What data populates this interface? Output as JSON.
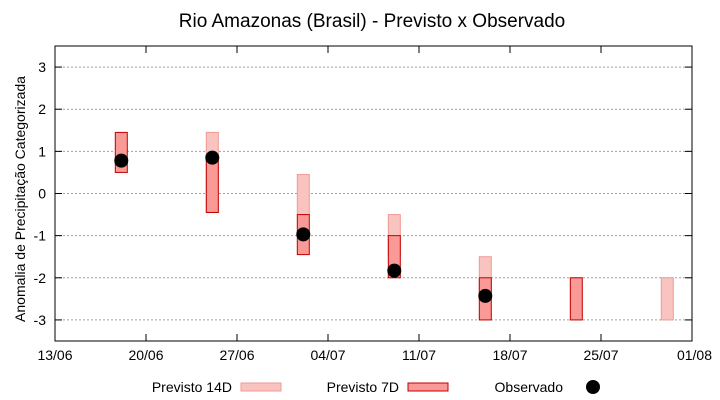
{
  "chart_data": {
    "type": "range-bar-with-points",
    "title": "Rio Amazonas (Brasil) - Previsto x Observado",
    "xlabel": "",
    "ylabel": "Anomalia de Precipitação Categorizada",
    "ylim": [
      -3.5,
      3.5
    ],
    "yticks": [
      3,
      2,
      1,
      0,
      -1,
      -2,
      -3
    ],
    "xlim_days": [
      0,
      49
    ],
    "xticks": [
      {
        "day": 0,
        "label": "13/06"
      },
      {
        "day": 7,
        "label": "20/06"
      },
      {
        "day": 14,
        "label": "27/06"
      },
      {
        "day": 21,
        "label": "04/07"
      },
      {
        "day": 28,
        "label": "11/07"
      },
      {
        "day": 35,
        "label": "18/07"
      },
      {
        "day": 42,
        "label": "25/07"
      },
      {
        "day": 49,
        "label": "01/08"
      }
    ],
    "grid": true,
    "series": [
      {
        "name": "Previsto 14D",
        "color": "#f9c4bf",
        "edge": "#f19a94",
        "points": [
          {
            "day": 12.1,
            "low": -0.45,
            "high": 1.45
          },
          {
            "day": 19.1,
            "low": -0.5,
            "high": 0.45
          },
          {
            "day": 26.1,
            "low": -1.5,
            "high": -0.5
          },
          {
            "day": 33.1,
            "low": -2.5,
            "high": -1.5
          },
          {
            "day": 47.1,
            "low": -3.0,
            "high": -2.0
          }
        ]
      },
      {
        "name": "Previsto 7D",
        "color": "#f99a96",
        "edge": "#c00000",
        "points": [
          {
            "day": 5.1,
            "low": 0.5,
            "high": 1.45
          },
          {
            "day": 12.1,
            "low": -0.45,
            "high": 0.8
          },
          {
            "day": 19.1,
            "low": -1.45,
            "high": -0.5
          },
          {
            "day": 26.1,
            "low": -2.0,
            "high": -1.0
          },
          {
            "day": 33.1,
            "low": -3.0,
            "high": -2.0
          },
          {
            "day": 40.1,
            "low": -3.0,
            "high": -2.0
          }
        ]
      },
      {
        "name": "Observado",
        "color": "#000000",
        "points": [
          {
            "day": 5.1,
            "value": 0.78
          },
          {
            "day": 12.1,
            "value": 0.85
          },
          {
            "day": 19.1,
            "value": -0.97
          },
          {
            "day": 26.1,
            "value": -1.83
          },
          {
            "day": 33.1,
            "value": -2.43
          }
        ]
      }
    ],
    "legend": {
      "placement": "bottom",
      "items": [
        "Previsto 14D",
        "Previsto 7D",
        "Observado"
      ]
    }
  }
}
